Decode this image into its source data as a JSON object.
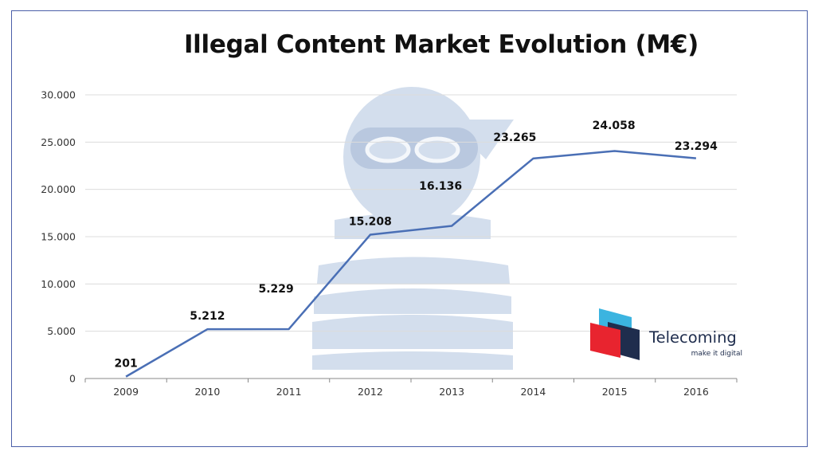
{
  "chart_data": {
    "type": "line",
    "title": "Illegal Content Market Evolution (M€)",
    "categories": [
      "2009",
      "2010",
      "2011",
      "2012",
      "2013",
      "2014",
      "2015",
      "2016"
    ],
    "series": [
      {
        "values": [
          201,
          5212,
          5229,
          15208,
          16136,
          23265,
          24058,
          23294
        ],
        "data_labels": [
          "201",
          "5.212",
          "5.229",
          "15.208",
          "16.136",
          "23.265",
          "24.058",
          "23.294"
        ],
        "color": "#4a6fb5"
      }
    ],
    "ylim": [
      0,
      30000
    ],
    "yticks": [
      0,
      5000,
      10000,
      15000,
      20000,
      25000,
      30000
    ],
    "ytick_labels": [
      "0",
      "5.000",
      "10.000",
      "15.000",
      "20.000",
      "25.000",
      "30.000"
    ],
    "grid": "horizontal",
    "xlabel": "",
    "ylabel": ""
  },
  "watermark": {
    "icon": "masked-thief-icon",
    "color": "#d3deed"
  },
  "logo": {
    "name": "Telecoming",
    "tagline": "make it digital",
    "colors": [
      "#e8242f",
      "#3bb4e0",
      "#1f2d4d"
    ]
  },
  "colors": {
    "frame": "#4a5fa8",
    "grid": "#dcdcdc",
    "axis": "#888888"
  }
}
